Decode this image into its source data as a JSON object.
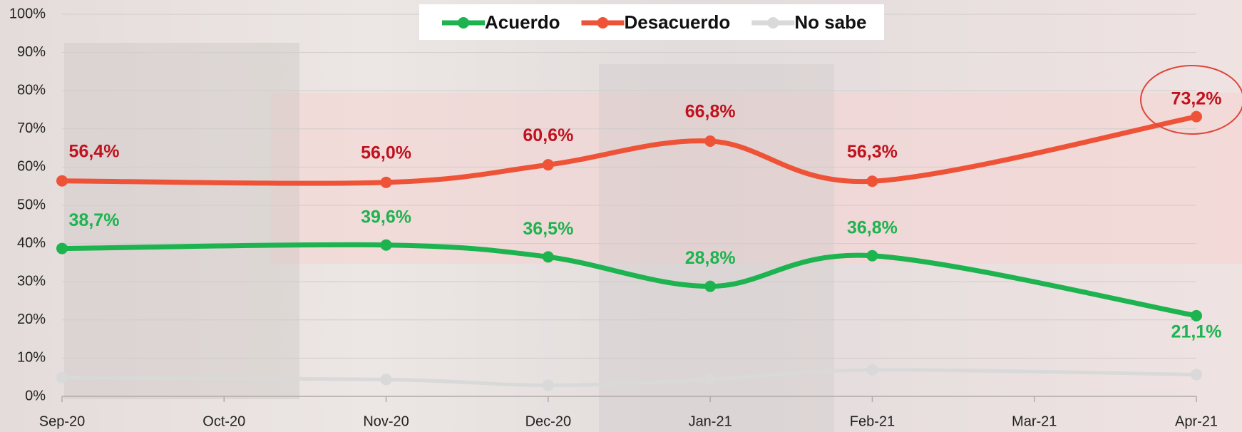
{
  "chart_data": {
    "type": "line",
    "categories": [
      "Sep-20",
      "Oct-20",
      "Nov-20",
      "Dec-20",
      "Jan-21",
      "Feb-21",
      "Mar-21",
      "Apr-21"
    ],
    "series": [
      {
        "name": "Acuerdo",
        "color": "#1db34f",
        "x": [
          "Sep-20",
          "Nov-20",
          "Dec-20",
          "Jan-21",
          "Feb-21",
          "Apr-21"
        ],
        "values": [
          38.7,
          39.6,
          36.5,
          28.8,
          36.8,
          21.1
        ],
        "value_labels": [
          "38,7%",
          "39,6%",
          "36,5%",
          "28,8%",
          "36,8%",
          "21,1%"
        ]
      },
      {
        "name": "Desacuerdo",
        "color": "#ee5338",
        "x": [
          "Sep-20",
          "Nov-20",
          "Dec-20",
          "Jan-21",
          "Feb-21",
          "Apr-21"
        ],
        "values": [
          56.4,
          56.0,
          60.6,
          66.8,
          56.3,
          73.2
        ],
        "value_labels": [
          "56,4%",
          "56,0%",
          "60,6%",
          "66,8%",
          "56,3%",
          "73,2%"
        ]
      },
      {
        "name": "No sabe",
        "color": "#d9d9d9",
        "x": [
          "Sep-20",
          "Nov-20",
          "Dec-20",
          "Jan-21",
          "Feb-21",
          "Apr-21"
        ],
        "values": [
          4.9,
          4.4,
          2.9,
          4.4,
          6.9,
          5.7
        ]
      }
    ],
    "ylim": [
      0,
      100
    ],
    "yticks": [
      {
        "value": 0,
        "label": "0%"
      },
      {
        "value": 10,
        "label": "10%"
      },
      {
        "value": 20,
        "label": "20%"
      },
      {
        "value": 30,
        "label": "30%"
      },
      {
        "value": 40,
        "label": "40%"
      },
      {
        "value": 50,
        "label": "50%"
      },
      {
        "value": 60,
        "label": "60%"
      },
      {
        "value": 70,
        "label": "70%"
      },
      {
        "value": 80,
        "label": "80%"
      },
      {
        "value": 90,
        "label": "90%"
      },
      {
        "value": 100,
        "label": "100%"
      }
    ],
    "grid": true,
    "legend": "top"
  }
}
